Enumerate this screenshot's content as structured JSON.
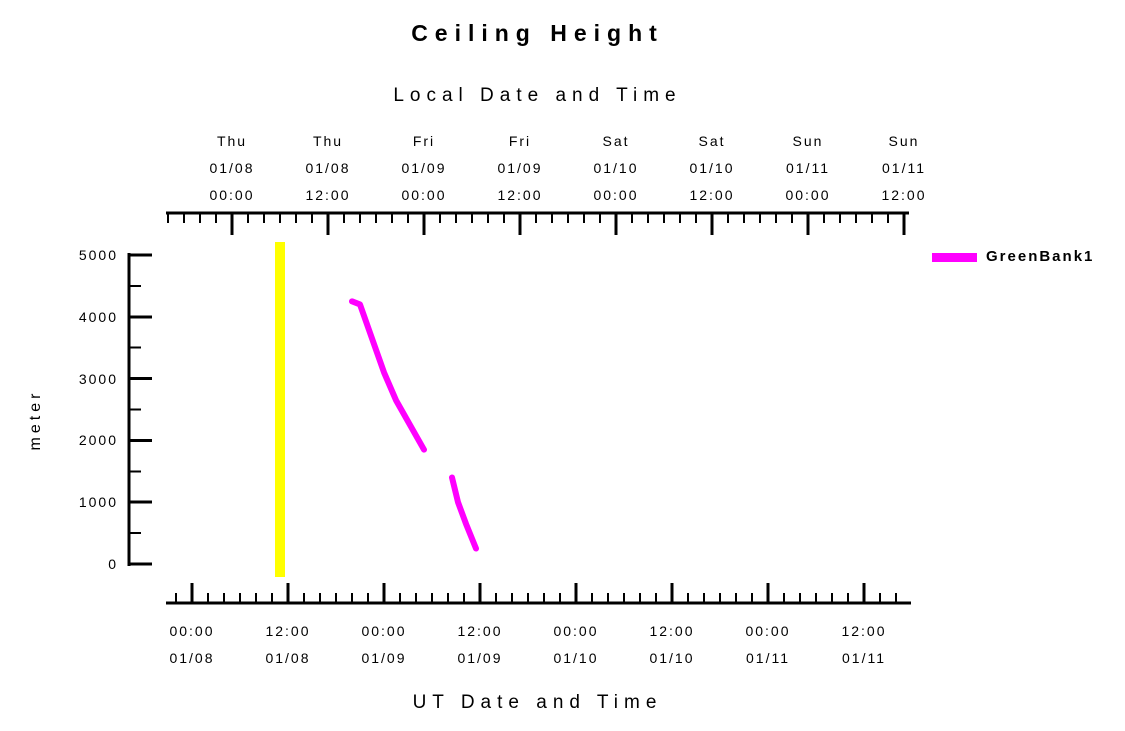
{
  "title": "Ceiling Height",
  "top_axis": {
    "label": "Local Date and Time",
    "ticks": [
      {
        "day": "Thu",
        "date": "01/08",
        "time": "00:00"
      },
      {
        "day": "Thu",
        "date": "01/08",
        "time": "12:00"
      },
      {
        "day": "Fri",
        "date": "01/09",
        "time": "00:00"
      },
      {
        "day": "Fri",
        "date": "01/09",
        "time": "12:00"
      },
      {
        "day": "Sat",
        "date": "01/10",
        "time": "00:00"
      },
      {
        "day": "Sat",
        "date": "01/10",
        "time": "12:00"
      },
      {
        "day": "Sun",
        "date": "01/11",
        "time": "00:00"
      },
      {
        "day": "Sun",
        "date": "01/11",
        "time": "12:00"
      }
    ]
  },
  "bottom_axis": {
    "label": "UT Date and Time",
    "ticks": [
      {
        "time": "00:00",
        "date": "01/08"
      },
      {
        "time": "12:00",
        "date": "01/08"
      },
      {
        "time": "00:00",
        "date": "01/09"
      },
      {
        "time": "12:00",
        "date": "01/09"
      },
      {
        "time": "00:00",
        "date": "01/10"
      },
      {
        "time": "12:00",
        "date": "01/10"
      },
      {
        "time": "00:00",
        "date": "01/11"
      },
      {
        "time": "12:00",
        "date": "01/11"
      }
    ]
  },
  "y_axis": {
    "label": "meter",
    "tick_labels": [
      "5000",
      "4000",
      "3000",
      "2000",
      "1000",
      "0"
    ],
    "tick_values": [
      5000,
      4000,
      3000,
      2000,
      1000,
      0
    ]
  },
  "legend": {
    "series_label": "GreenBank1",
    "swatch_color": "#FF00FF"
  },
  "chart_data": {
    "type": "line",
    "title": "Ceiling Height",
    "xlabel_top": "Local Date and Time",
    "xlabel_bottom": "UT Date and Time",
    "ylabel": "meter",
    "ylim": [
      0,
      5000
    ],
    "y_major_step": 1000,
    "y_minor_step": 500,
    "x_major_step_hours": 12,
    "x_minor_step_hours": 2,
    "timezone_offset_hours": -5,
    "grid": false,
    "legend_position": "right-of-plot-top",
    "series": [
      {
        "name": "GreenBank1",
        "color": "#FF00FF",
        "segments": [
          [
            {
              "ut": "01/08 20:00",
              "meters": 4250
            },
            {
              "ut": "01/08 21:00",
              "meters": 4200
            },
            {
              "ut": "01/09 00:00",
              "meters": 3100
            },
            {
              "ut": "01/09 01:30",
              "meters": 2650
            },
            {
              "ut": "01/09 05:00",
              "meters": 1850
            }
          ],
          [
            {
              "ut": "01/09 08:30",
              "meters": 1400
            },
            {
              "ut": "01/09 09:15",
              "meters": 1000
            },
            {
              "ut": "01/09 10:15",
              "meters": 650
            },
            {
              "ut": "01/09 11:30",
              "meters": 250
            }
          ]
        ]
      }
    ],
    "marker_line": {
      "ut": "01/08 11:00",
      "color": "#FFFF00"
    }
  }
}
